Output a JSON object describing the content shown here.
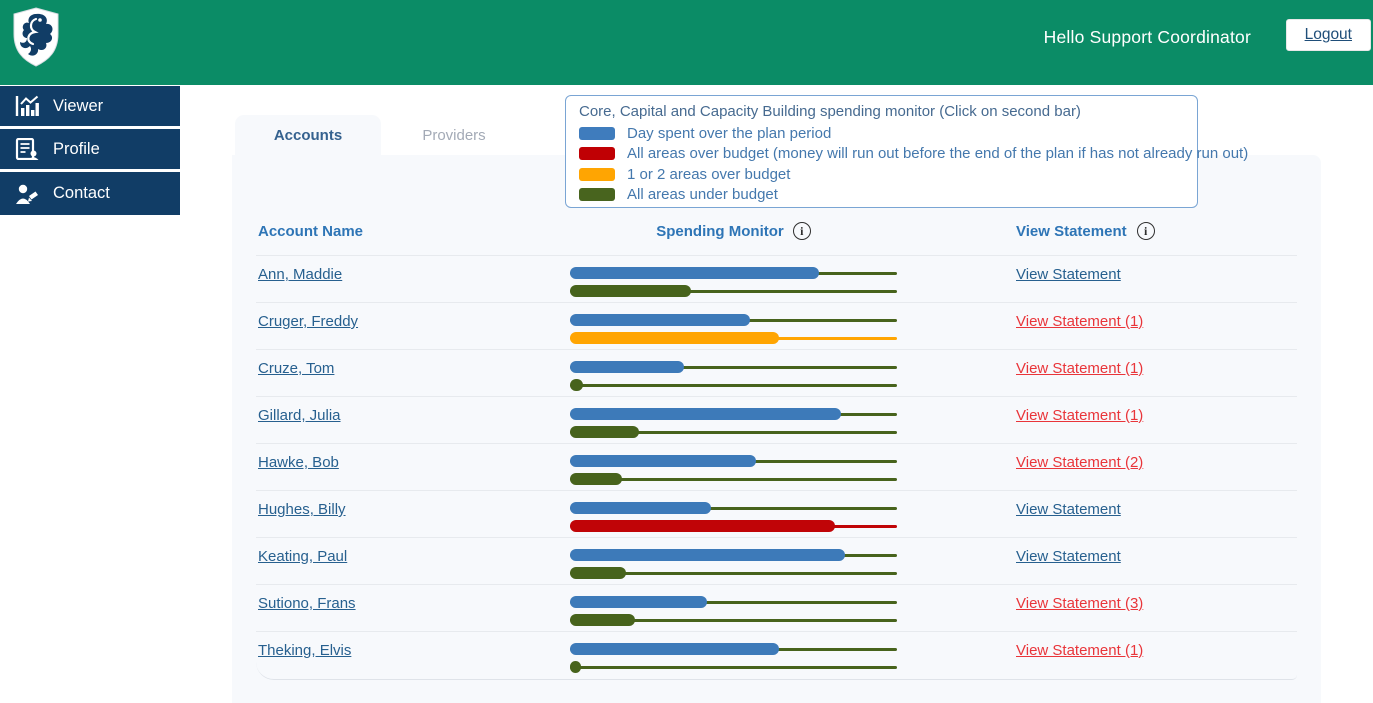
{
  "header": {
    "greeting": "Hello Support Coordinator",
    "logout": "Logout"
  },
  "sidebar": {
    "items": [
      {
        "label": "Viewer",
        "icon": "chart-icon"
      },
      {
        "label": "Profile",
        "icon": "profile-document-icon"
      },
      {
        "label": "Contact",
        "icon": "contact-person-icon"
      }
    ]
  },
  "tabs": [
    {
      "label": "Accounts",
      "active": true
    },
    {
      "label": "Providers",
      "active": false
    }
  ],
  "legend": {
    "title": "Core, Capital and Capacity Building spending monitor (Click on second bar)",
    "items": [
      {
        "color": "#3f7cbd",
        "label": "Day spent over the plan period"
      },
      {
        "color": "#c00004",
        "label": "All areas over budget (money will run out before the end of the plan if has not already run out)"
      },
      {
        "color": "#ffa502",
        "label": "1 or 2 areas over budget"
      },
      {
        "color": "#48641e",
        "label": "All areas under budget"
      }
    ]
  },
  "table": {
    "headers": {
      "name": "Account Name",
      "monitor": "Spending Monitor",
      "statement": "View Statement"
    },
    "info_icon_glyph": "i",
    "rows": [
      {
        "name": "Ann, Maddie",
        "day_spent_pct": 76,
        "budget_pct": 37,
        "budget_status": "green",
        "statement_label": "View Statement",
        "statement_alert": false
      },
      {
        "name": "Cruger, Freddy",
        "day_spent_pct": 55,
        "budget_pct": 64,
        "budget_status": "orange",
        "statement_label": "View Statement (1)",
        "statement_alert": true
      },
      {
        "name": "Cruze, Tom",
        "day_spent_pct": 35,
        "budget_pct": 4,
        "budget_status": "green",
        "statement_label": "View Statement (1)",
        "statement_alert": true
      },
      {
        "name": "Gillard, Julia",
        "day_spent_pct": 83,
        "budget_pct": 21,
        "budget_status": "green",
        "statement_label": "View Statement (1)",
        "statement_alert": true
      },
      {
        "name": "Hawke, Bob",
        "day_spent_pct": 57,
        "budget_pct": 16,
        "budget_status": "green",
        "statement_label": "View Statement (2)",
        "statement_alert": true
      },
      {
        "name": "Hughes, Billy",
        "day_spent_pct": 43,
        "budget_pct": 81,
        "budget_status": "red",
        "statement_label": "View Statement",
        "statement_alert": false
      },
      {
        "name": "Keating, Paul",
        "day_spent_pct": 84,
        "budget_pct": 17,
        "budget_status": "green",
        "statement_label": "View Statement",
        "statement_alert": false
      },
      {
        "name": "Sutiono, Frans",
        "day_spent_pct": 42,
        "budget_pct": 20,
        "budget_status": "green",
        "statement_label": "View Statement (3)",
        "statement_alert": true
      },
      {
        "name": "Theking, Elvis",
        "day_spent_pct": 64,
        "budget_pct": 3,
        "budget_status": "green",
        "statement_label": "View Statement (1)",
        "statement_alert": true
      }
    ]
  },
  "colors": {
    "header_green": "#0b8c66",
    "sidebar_navy": "#113d66",
    "bar_blue": "#3d7ab9",
    "bar_green": "#47631c",
    "bar_orange": "#ffa502",
    "bar_red": "#c00407",
    "link_navy": "#27608f",
    "link_alert": "#e9353a",
    "column_header_blue": "#2e75b6",
    "panel_bg": "#f7f9fc"
  }
}
